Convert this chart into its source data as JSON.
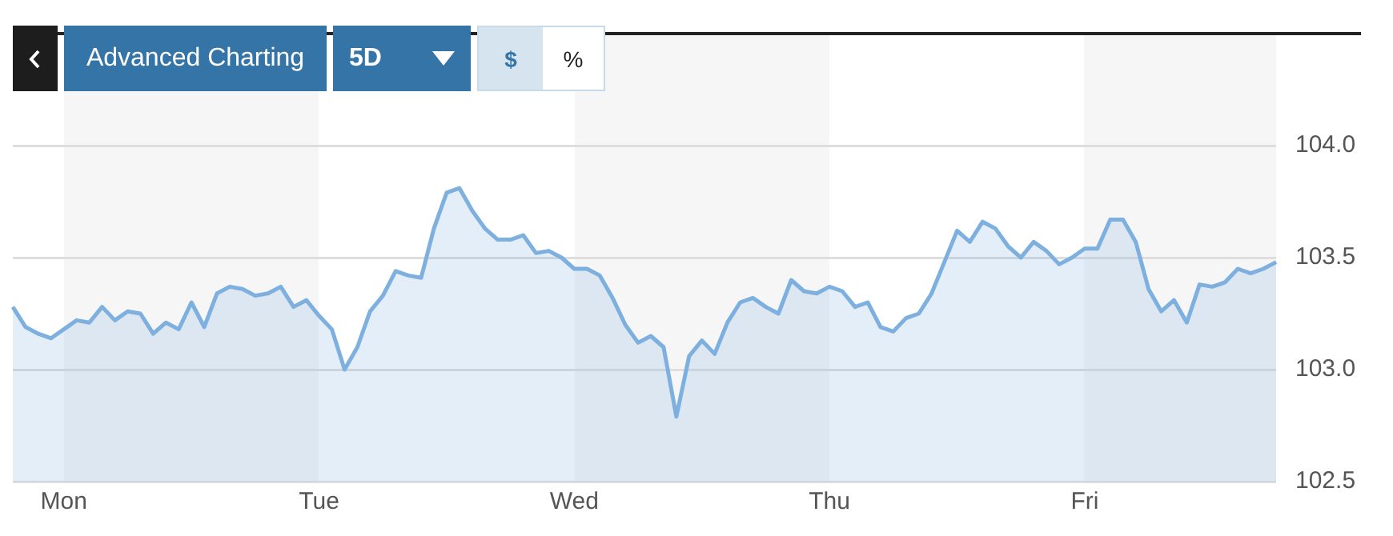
{
  "chart_data": {
    "type": "area",
    "categories": [
      null,
      null,
      null,
      null,
      "Mon",
      null,
      null,
      null,
      null,
      null,
      null,
      null,
      null,
      null,
      null,
      null,
      null,
      null,
      null,
      null,
      null,
      null,
      null,
      null,
      "Tue",
      null,
      null,
      null,
      null,
      null,
      null,
      null,
      null,
      null,
      null,
      null,
      null,
      null,
      null,
      null,
      null,
      null,
      null,
      null,
      "Wed",
      null,
      null,
      null,
      null,
      null,
      null,
      null,
      null,
      null,
      null,
      null,
      null,
      null,
      null,
      null,
      null,
      null,
      null,
      null,
      "Thu",
      null,
      null,
      null,
      null,
      null,
      null,
      null,
      null,
      null,
      null,
      null,
      null,
      null,
      null,
      null,
      null,
      null,
      null,
      null,
      "Fri",
      null,
      null,
      null,
      null,
      null,
      null,
      null,
      null,
      null,
      null,
      null,
      null,
      null,
      null,
      null
    ],
    "series": [
      {
        "color": "#7eb0df",
        "values": [
          103.28,
          103.19,
          103.16,
          103.14,
          103.18,
          103.22,
          103.21,
          103.28,
          103.22,
          103.26,
          103.25,
          103.16,
          103.21,
          103.18,
          103.3,
          103.19,
          103.34,
          103.37,
          103.36,
          103.33,
          103.34,
          103.37,
          103.28,
          103.31,
          103.24,
          103.18,
          103.0,
          103.1,
          103.26,
          103.33,
          103.44,
          103.42,
          103.41,
          103.63,
          103.79,
          103.81,
          103.71,
          103.63,
          103.58,
          103.58,
          103.6,
          103.52,
          103.53,
          103.5,
          103.45,
          103.45,
          103.42,
          103.32,
          103.2,
          103.12,
          103.15,
          103.1,
          102.79,
          103.06,
          103.13,
          103.07,
          103.21,
          103.3,
          103.32,
          103.28,
          103.25,
          103.4,
          103.35,
          103.34,
          103.37,
          103.35,
          103.28,
          103.3,
          103.19,
          103.17,
          103.23,
          103.25,
          103.34,
          103.48,
          103.62,
          103.57,
          103.66,
          103.63,
          103.55,
          103.5,
          103.57,
          103.53,
          103.47,
          103.5,
          103.54,
          103.54,
          103.67,
          103.67,
          103.57,
          103.36,
          103.26,
          103.31,
          103.21,
          103.38,
          103.37,
          103.39,
          103.45,
          103.43,
          103.45,
          103.48
        ]
      }
    ],
    "ylim": [
      102.5,
      104.5
    ],
    "yticks": [
      {
        "value": 102.5,
        "label": "102.5"
      },
      {
        "value": 103,
        "label": "103.0"
      },
      {
        "value": 103.5,
        "label": "103.5"
      },
      {
        "value": 104,
        "label": "104.0"
      }
    ],
    "annotations": [
      "Advanced Charting",
      "5D",
      "$",
      "%"
    ],
    "grid": "y",
    "legend": false,
    "marker": "none",
    "line_style": "solid"
  }
}
